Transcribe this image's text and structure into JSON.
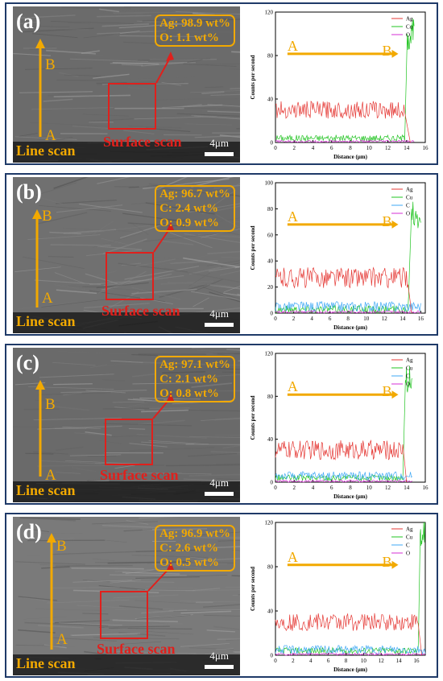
{
  "colors": {
    "accent_orange": "#f2a900",
    "red": "#e0201c",
    "frame": "#1f3a68",
    "Ag": "#e53935",
    "Cu": "#22c422",
    "C": "#3fa9f5",
    "O": "#d62fd6"
  },
  "panels": [
    {
      "label": "(a)",
      "composition": [
        "Ag: 98.9 wt%",
        "O: 1.1 wt%"
      ],
      "line_scan": "Line scan",
      "surface_scan": "Surface scan",
      "point_a": "A",
      "point_b": "B",
      "scale": "4μm"
    },
    {
      "label": "(b)",
      "composition": [
        "Ag: 96.7 wt%",
        "C: 2.4 wt%",
        "O: 0.9 wt%"
      ],
      "line_scan": "Line scan",
      "surface_scan": "Surface scan",
      "point_a": "A",
      "point_b": "B",
      "scale": "4μm"
    },
    {
      "label": "(c)",
      "composition": [
        "Ag: 97.1 wt%",
        "C: 2.1 wt%",
        "O: 0.8 wt%"
      ],
      "line_scan": "Line scan",
      "surface_scan": "Surface scan",
      "point_a": "A",
      "point_b": "B",
      "scale": "4μm"
    },
    {
      "label": "(d)",
      "composition": [
        "Ag: 96.9 wt%",
        "C: 2.6 wt%",
        "O: 0.5 wt%"
      ],
      "line_scan": "Line scan",
      "surface_scan": "Surface scan",
      "point_a": "A",
      "point_b": "B",
      "scale": "4μm"
    }
  ],
  "chart_data": [
    {
      "type": "line",
      "xlabel": "Distance (μm)",
      "ylabel": "Counts per second",
      "xlim": [
        0,
        16
      ],
      "ylim": [
        0,
        120
      ],
      "xticks": [
        0,
        2,
        4,
        6,
        8,
        10,
        12,
        14,
        16
      ],
      "yticks": [
        0,
        40,
        80,
        120
      ],
      "grid": false,
      "legend": "top-right",
      "arrow_labels": {
        "start": "A",
        "end": "B"
      },
      "series": [
        {
          "name": "Ag",
          "color": "#e53935",
          "x_range": [
            0,
            13.8
          ],
          "level": 30,
          "noise": 8,
          "end": {
            "x": 14.4,
            "y": 0
          }
        },
        {
          "name": "Cu",
          "color": "#22c422",
          "x_range": [
            0,
            13.8
          ],
          "level": 4,
          "noise": 3,
          "end": {
            "x": 14.8,
            "y": 100
          }
        },
        {
          "name": "O",
          "color": "#d62fd6",
          "x_range": [
            0,
            14.8
          ],
          "level": 1,
          "noise": 1
        }
      ]
    },
    {
      "type": "line",
      "xlabel": "Distance (μm)",
      "ylabel": "Counts per second",
      "xlim": [
        0,
        16.5
      ],
      "ylim": [
        0,
        100
      ],
      "xticks": [
        0,
        2,
        4,
        6,
        8,
        10,
        12,
        14,
        16
      ],
      "yticks": [
        0,
        20,
        40,
        60,
        80,
        100
      ],
      "grid": false,
      "legend": "top-right",
      "arrow_labels": {
        "start": "A",
        "end": "B"
      },
      "series": [
        {
          "name": "Ag",
          "color": "#e53935",
          "x_range": [
            0,
            14.6
          ],
          "level": 27,
          "noise": 8,
          "end": {
            "x": 15.0,
            "y": 0
          }
        },
        {
          "name": "Cu",
          "color": "#22c422",
          "x_range": [
            0,
            14.6
          ],
          "level": 3,
          "noise": 3,
          "end": {
            "x": 16.0,
            "y": 80
          }
        },
        {
          "name": "C",
          "color": "#3fa9f5",
          "x_range": [
            0,
            16.0
          ],
          "level": 5,
          "noise": 4
        },
        {
          "name": "O",
          "color": "#d62fd6",
          "x_range": [
            0,
            16.0
          ],
          "level": 1,
          "noise": 1
        }
      ]
    },
    {
      "type": "line",
      "xlabel": "Distance (μm)",
      "ylabel": "Counts per second",
      "xlim": [
        0,
        16
      ],
      "ylim": [
        0,
        120
      ],
      "xticks": [
        0,
        2,
        4,
        6,
        8,
        10,
        12,
        14,
        16
      ],
      "yticks": [
        0,
        40,
        80,
        120
      ],
      "grid": false,
      "legend": "top-right",
      "arrow_labels": {
        "start": "A",
        "end": "B"
      },
      "series": [
        {
          "name": "Ag",
          "color": "#e53935",
          "x_range": [
            0,
            13.6
          ],
          "level": 30,
          "noise": 9,
          "end": {
            "x": 14.0,
            "y": 0
          }
        },
        {
          "name": "Cu",
          "color": "#22c422",
          "x_range": [
            0,
            13.6
          ],
          "level": 4,
          "noise": 3,
          "end": {
            "x": 14.6,
            "y": 95
          }
        },
        {
          "name": "C",
          "color": "#3fa9f5",
          "x_range": [
            0,
            14.6
          ],
          "level": 6,
          "noise": 4
        },
        {
          "name": "O",
          "color": "#d62fd6",
          "x_range": [
            0,
            14.6
          ],
          "level": 1,
          "noise": 1
        }
      ]
    },
    {
      "type": "line",
      "xlabel": "Distance (μm)",
      "ylabel": "Counts per second",
      "xlim": [
        0,
        17
      ],
      "ylim": [
        0,
        120
      ],
      "xticks": [
        0,
        2,
        4,
        6,
        8,
        10,
        12,
        14,
        16
      ],
      "yticks": [
        0,
        40,
        80,
        120
      ],
      "grid": false,
      "legend": "top-right",
      "arrow_labels": {
        "start": "A",
        "end": "B"
      },
      "series": [
        {
          "name": "Ag",
          "color": "#e53935",
          "x_range": [
            0,
            16.2
          ],
          "level": 30,
          "noise": 8,
          "end": {
            "x": 16.6,
            "y": 0
          }
        },
        {
          "name": "Cu",
          "color": "#22c422",
          "x_range": [
            0,
            16.2
          ],
          "level": 4,
          "noise": 3,
          "end": {
            "x": 17.0,
            "y": 110
          }
        },
        {
          "name": "C",
          "color": "#3fa9f5",
          "x_range": [
            0,
            17.0
          ],
          "level": 5,
          "noise": 4
        },
        {
          "name": "O",
          "color": "#d62fd6",
          "x_range": [
            0,
            17.0
          ],
          "level": 1,
          "noise": 1
        }
      ]
    }
  ]
}
